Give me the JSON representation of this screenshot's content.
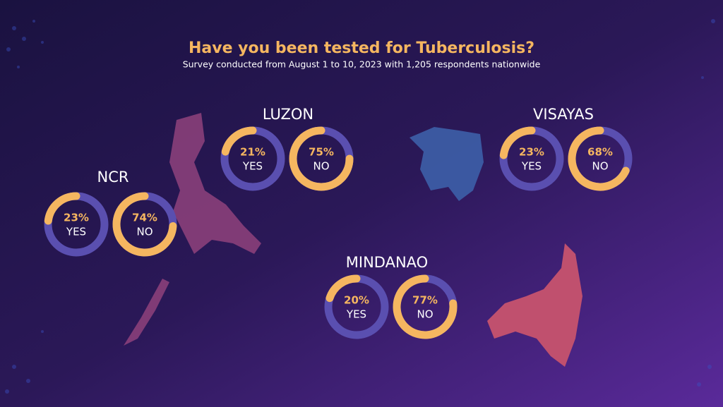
{
  "title": "Have you been tested for Tuberculosis?",
  "subtitle": "Survey conducted from August 1 to 10, 2023 with 1,205 respondents nationwide",
  "chart_data": [
    {
      "type": "donut",
      "title": "NCR",
      "categories": [
        "YES",
        "NO"
      ],
      "values": [
        23,
        74
      ],
      "value_labels": [
        "23%",
        "74%"
      ],
      "color": "#f5b660",
      "track_color": "#5a4fb0"
    },
    {
      "type": "donut",
      "title": "LUZON",
      "categories": [
        "YES",
        "NO"
      ],
      "values": [
        21,
        75
      ],
      "value_labels": [
        "21%",
        "75%"
      ],
      "color": "#f5b660",
      "track_color": "#5a4fb0"
    },
    {
      "type": "donut",
      "title": "VISAYAS",
      "categories": [
        "YES",
        "NO"
      ],
      "values": [
        23,
        68
      ],
      "value_labels": [
        "23%",
        "68%"
      ],
      "color": "#f5b660",
      "track_color": "#5a4fb0"
    },
    {
      "type": "donut",
      "title": "MINDANAO",
      "categories": [
        "YES",
        "NO"
      ],
      "values": [
        20,
        77
      ],
      "value_labels": [
        "20%",
        "77%"
      ],
      "color": "#f5b660",
      "track_color": "#5a4fb0"
    }
  ]
}
